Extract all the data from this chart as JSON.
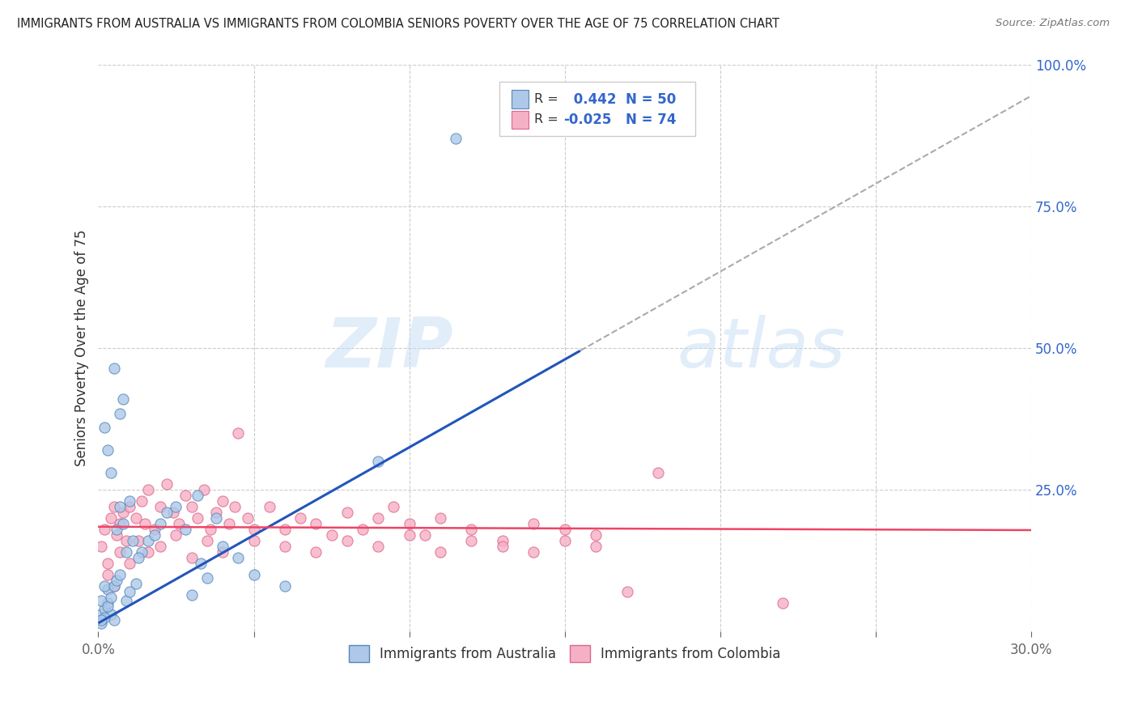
{
  "title": "IMMIGRANTS FROM AUSTRALIA VS IMMIGRANTS FROM COLOMBIA SENIORS POVERTY OVER THE AGE OF 75 CORRELATION CHART",
  "source": "Source: ZipAtlas.com",
  "ylabel": "Seniors Poverty Over the Age of 75",
  "xlim": [
    0.0,
    0.3
  ],
  "ylim": [
    0.0,
    1.0
  ],
  "australia_color": "#adc8e8",
  "colombia_color": "#f5b0c5",
  "australia_edge": "#5588bb",
  "colombia_edge": "#dd6688",
  "trendline_australia_color": "#2255bb",
  "trendline_colombia_color": "#ee4466",
  "dashed_line_color": "#aaaaaa",
  "R_australia": 0.442,
  "N_australia": 50,
  "R_colombia": -0.025,
  "N_colombia": 74,
  "watermark_zip": "ZIP",
  "watermark_atlas": "atlas",
  "background_color": "#ffffff",
  "grid_color": "#cccccc",
  "axis_label_color": "#3366cc",
  "title_color": "#222222",
  "source_color": "#777777",
  "legend_border_color": "#cccccc",
  "legend_text_color": "#333333",
  "legend_value_color": "#3366cc",
  "slope_aus": 3.1,
  "intercept_aus": 0.015,
  "slope_col": -0.02,
  "intercept_col": 0.185
}
